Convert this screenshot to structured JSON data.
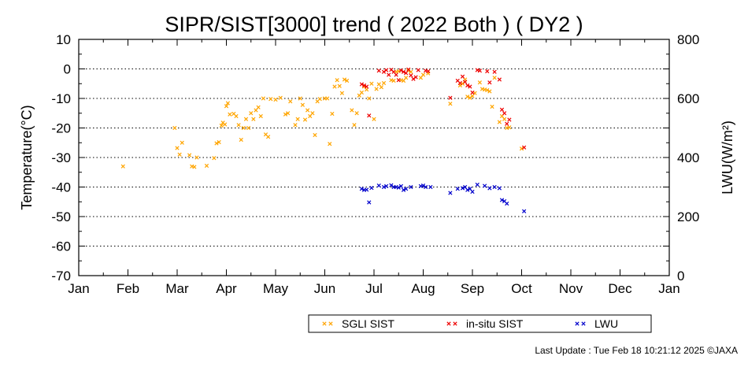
{
  "chart_data": {
    "type": "scatter",
    "title": "SIPR/SIST[3000] trend ( 2022 Both ) ( DY2 )",
    "ylabel": "Temperature(°C)",
    "y2label": "LWU(W/m²)",
    "ylim": [
      -70,
      10
    ],
    "y2lim": [
      0,
      800
    ],
    "yticks": [
      "10",
      "0",
      "-10",
      "-20",
      "-30",
      "-40",
      "-50",
      "-60",
      "-70"
    ],
    "y2ticks": [
      "800",
      "600",
      "400",
      "200",
      "0"
    ],
    "xticks": [
      "Jan",
      "Feb",
      "Mar",
      "Apr",
      "May",
      "Jun",
      "Jul",
      "Aug",
      "Sep",
      "Oct",
      "Nov",
      "Dec",
      "Jan"
    ],
    "xlim": [
      0,
      12
    ],
    "grid": true,
    "legend_position": "bottom-center",
    "series": [
      {
        "name": "SGLI SIST",
        "color": "#ffa500",
        "axis": "left",
        "points": [
          [
            0.9,
            -33.0
          ],
          [
            1.95,
            -20.0
          ],
          [
            2.0,
            -26.8
          ],
          [
            2.05,
            -29.0
          ],
          [
            2.1,
            -25.0
          ],
          [
            2.25,
            -29.2
          ],
          [
            2.3,
            -33.0
          ],
          [
            2.35,
            -33.2
          ],
          [
            2.4,
            -30.0
          ],
          [
            2.6,
            -32.8
          ],
          [
            2.75,
            -30.2
          ],
          [
            2.8,
            -25.2
          ],
          [
            2.85,
            -24.8
          ],
          [
            2.9,
            -19.2
          ],
          [
            2.93,
            -18.2
          ],
          [
            2.97,
            -18.8
          ],
          [
            3.0,
            -12.6
          ],
          [
            3.03,
            -11.6
          ],
          [
            3.07,
            -15.4
          ],
          [
            3.15,
            -15.2
          ],
          [
            3.2,
            -16.0
          ],
          [
            3.25,
            -19.0
          ],
          [
            3.3,
            -24.0
          ],
          [
            3.35,
            -20.0
          ],
          [
            3.4,
            -17.0
          ],
          [
            3.45,
            -20.0
          ],
          [
            3.5,
            -15.0
          ],
          [
            3.55,
            -17.0
          ],
          [
            3.6,
            -14.0
          ],
          [
            3.65,
            -13.0
          ],
          [
            3.7,
            -16.0
          ],
          [
            3.75,
            -10.0
          ],
          [
            3.8,
            -22.2
          ],
          [
            3.85,
            -23.0
          ],
          [
            3.9,
            -10.2
          ],
          [
            4.0,
            -10.4
          ],
          [
            4.1,
            -9.8
          ],
          [
            4.2,
            -15.4
          ],
          [
            4.25,
            -15.0
          ],
          [
            4.3,
            -11.0
          ],
          [
            4.4,
            -19.0
          ],
          [
            4.45,
            -17.0
          ],
          [
            4.5,
            -10.0
          ],
          [
            4.55,
            -12.2
          ],
          [
            4.6,
            -17.2
          ],
          [
            4.65,
            -14.0
          ],
          [
            4.7,
            -16.0
          ],
          [
            4.75,
            -15.0
          ],
          [
            4.8,
            -22.4
          ],
          [
            4.85,
            -11.0
          ],
          [
            4.9,
            -10.2
          ],
          [
            5.0,
            -10.0
          ],
          [
            5.05,
            -10.0
          ],
          [
            5.1,
            -25.4
          ],
          [
            5.15,
            -15.2
          ],
          [
            5.2,
            -6.0
          ],
          [
            5.25,
            -3.8
          ],
          [
            5.3,
            -5.8
          ],
          [
            5.35,
            -8.2
          ],
          [
            5.4,
            -3.6
          ],
          [
            5.45,
            -4.0
          ],
          [
            5.55,
            -14.0
          ],
          [
            5.6,
            -19.0
          ],
          [
            5.65,
            -15.0
          ],
          [
            5.7,
            -9.0
          ],
          [
            5.75,
            -8.0
          ],
          [
            5.8,
            -6.0
          ],
          [
            5.85,
            -7.0
          ],
          [
            5.9,
            -10.0
          ],
          [
            5.95,
            -5.0
          ],
          [
            6.0,
            -17.0
          ],
          [
            6.05,
            -6.8
          ],
          [
            6.1,
            -5.2
          ],
          [
            6.15,
            -6.2
          ],
          [
            6.2,
            -4.8
          ],
          [
            6.35,
            -3.8
          ],
          [
            6.4,
            -4.0
          ],
          [
            6.45,
            -1.0
          ],
          [
            6.5,
            -0.8
          ],
          [
            6.55,
            -3.8
          ],
          [
            6.6,
            -4.0
          ],
          [
            6.65,
            -3.0
          ],
          [
            6.7,
            -0.6
          ],
          [
            6.75,
            -1.0
          ],
          [
            6.95,
            -3.0
          ],
          [
            7.0,
            -2.0
          ],
          [
            7.1,
            -1.5
          ],
          [
            7.55,
            -11.8
          ],
          [
            7.75,
            -5.6
          ],
          [
            7.8,
            -5.0
          ],
          [
            7.85,
            -3.6
          ],
          [
            7.9,
            -9.4
          ],
          [
            7.95,
            -9.8
          ],
          [
            8.0,
            -9.2
          ],
          [
            8.05,
            -8.2
          ],
          [
            8.15,
            -4.6
          ],
          [
            8.2,
            -6.8
          ],
          [
            8.25,
            -7.0
          ],
          [
            8.3,
            -7.2
          ],
          [
            8.35,
            -7.6
          ],
          [
            8.4,
            -12.8
          ],
          [
            8.45,
            -3.0
          ],
          [
            8.55,
            -18.0
          ],
          [
            8.6,
            -16.0
          ],
          [
            8.65,
            -17.0
          ],
          [
            8.7,
            -20.0
          ],
          [
            8.75,
            -19.8
          ],
          [
            9.0,
            -27.0
          ]
        ]
      },
      {
        "name": "in-situ SIST",
        "color": "#ee0000",
        "axis": "left",
        "points": [
          [
            5.75,
            -5.2
          ],
          [
            5.8,
            -5.6
          ],
          [
            5.85,
            -6.0
          ],
          [
            5.9,
            -15.8
          ],
          [
            6.1,
            -0.6
          ],
          [
            6.2,
            -1.0
          ],
          [
            6.25,
            -0.4
          ],
          [
            6.3,
            -2.0
          ],
          [
            6.35,
            -0.3
          ],
          [
            6.4,
            -1.0
          ],
          [
            6.45,
            -2.0
          ],
          [
            6.5,
            -3.8
          ],
          [
            6.55,
            -0.5
          ],
          [
            6.6,
            -1.0
          ],
          [
            6.65,
            -1.4
          ],
          [
            6.7,
            -0.2
          ],
          [
            6.75,
            -2.2
          ],
          [
            6.8,
            -3.4
          ],
          [
            6.85,
            -2.8
          ],
          [
            6.9,
            -0.4
          ],
          [
            7.05,
            -0.6
          ],
          [
            7.1,
            -0.8
          ],
          [
            7.55,
            -9.8
          ],
          [
            7.7,
            -4.0
          ],
          [
            7.75,
            -4.8
          ],
          [
            7.8,
            -2.6
          ],
          [
            7.85,
            -4.4
          ],
          [
            7.9,
            -5.6
          ],
          [
            7.95,
            -6.0
          ],
          [
            8.0,
            -8.0
          ],
          [
            8.1,
            -0.4
          ],
          [
            8.15,
            -0.6
          ],
          [
            8.3,
            -0.8
          ],
          [
            8.35,
            -4.6
          ],
          [
            8.45,
            -1.0
          ],
          [
            8.55,
            -3.6
          ],
          [
            8.6,
            -13.8
          ],
          [
            8.65,
            -15.0
          ],
          [
            8.7,
            -18.6
          ],
          [
            8.75,
            -17.2
          ],
          [
            9.05,
            -26.6
          ]
        ]
      },
      {
        "name": "LWU",
        "color": "#0000cc",
        "axis": "right",
        "points": [
          [
            5.75,
            294
          ],
          [
            5.8,
            290
          ],
          [
            5.85,
            291
          ],
          [
            5.9,
            248
          ],
          [
            5.95,
            297
          ],
          [
            6.1,
            305
          ],
          [
            6.2,
            300
          ],
          [
            6.25,
            303
          ],
          [
            6.35,
            306
          ],
          [
            6.4,
            300
          ],
          [
            6.45,
            300
          ],
          [
            6.5,
            298
          ],
          [
            6.55,
            303
          ],
          [
            6.6,
            290
          ],
          [
            6.65,
            294
          ],
          [
            6.75,
            300
          ],
          [
            6.95,
            303
          ],
          [
            7.0,
            305
          ],
          [
            7.05,
            300
          ],
          [
            7.15,
            300
          ],
          [
            7.55,
            280
          ],
          [
            7.7,
            294
          ],
          [
            7.8,
            296
          ],
          [
            7.85,
            300
          ],
          [
            7.9,
            290
          ],
          [
            7.95,
            294
          ],
          [
            8.0,
            284
          ],
          [
            8.1,
            308
          ],
          [
            8.25,
            304
          ],
          [
            8.35,
            296
          ],
          [
            8.45,
            300
          ],
          [
            8.55,
            296
          ],
          [
            8.6,
            256
          ],
          [
            8.65,
            252
          ],
          [
            8.7,
            244
          ],
          [
            9.05,
            218
          ]
        ]
      }
    ]
  },
  "footer": {
    "last_update": "Last Update : Tue Feb 18 10:21:12 2025  ©JAXA"
  }
}
